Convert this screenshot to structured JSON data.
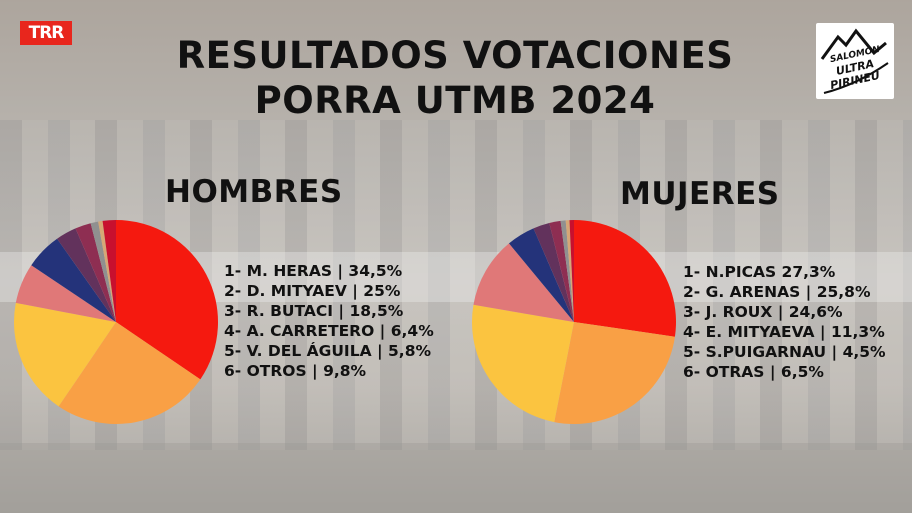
{
  "logo_left": "TRR",
  "title": {
    "line1": "RESULTADOS VOTACIONES",
    "line2": "PORRA UTMB 2024"
  },
  "logo_right": {
    "line1": "SALOMON",
    "line2": "ULTRA",
    "line3": "PIRINEU"
  },
  "colors": {
    "red": "#f5190f",
    "orange": "#f9a045",
    "yellow": "#fbc440",
    "pink": "#e07878",
    "navy": "#24337a",
    "purple": "#62325c",
    "magenta": "#8e2e52",
    "gray": "#909090",
    "tan": "#d6a776",
    "crimson": "#c8102e"
  },
  "chart_data": [
    {
      "type": "pie",
      "title": "HOMBRES",
      "legend_lines": [
        "1- M. HERAS | 34,5%",
        "2- D. MITYAEV | 25%",
        "3- R. BUTACI | 18,5%",
        "4- A. CARRETERO | 6,4%",
        "5- V. DEL ÁGUILA | 5,8%",
        "6- OTROS | 9,8%"
      ],
      "slices": [
        {
          "label": "M. HERAS",
          "value": 34.5,
          "color": "#f5190f"
        },
        {
          "label": "D. MITYAEV",
          "value": 25.0,
          "color": "#f9a045"
        },
        {
          "label": "R. BUTACI",
          "value": 18.5,
          "color": "#fbc440"
        },
        {
          "label": "",
          "value": 6.4,
          "color": "#e07878"
        },
        {
          "label": "",
          "value": 5.8,
          "color": "#24337a"
        },
        {
          "label": "",
          "value": 3.3,
          "color": "#62325c"
        },
        {
          "label": "",
          "value": 2.5,
          "color": "#8e2e52"
        },
        {
          "label": "",
          "value": 1.2,
          "color": "#909090"
        },
        {
          "label": "",
          "value": 0.7,
          "color": "#d6a776"
        },
        {
          "label": "",
          "value": 2.1,
          "color": "#c8102e"
        }
      ]
    },
    {
      "type": "pie",
      "title": "MUJERES",
      "legend_lines": [
        "1- N.PICAS 27,3%",
        "2- G. ARENAS | 25,8%",
        "3- J. ROUX | 24,6%",
        "4- E. MITYAEVA | 11,3%",
        "5- S.PUIGARNAU | 4,5%",
        "6- OTRAS | 6,5%"
      ],
      "slices": [
        {
          "label": "N.PICAS",
          "value": 27.3,
          "color": "#f5190f"
        },
        {
          "label": "G. ARENAS",
          "value": 25.8,
          "color": "#f9a045"
        },
        {
          "label": "J. ROUX",
          "value": 24.6,
          "color": "#fbc440"
        },
        {
          "label": "",
          "value": 11.3,
          "color": "#e07878"
        },
        {
          "label": "",
          "value": 4.5,
          "color": "#24337a"
        },
        {
          "label": "",
          "value": 2.6,
          "color": "#62325c"
        },
        {
          "label": "",
          "value": 1.8,
          "color": "#8e2e52"
        },
        {
          "label": "",
          "value": 0.8,
          "color": "#909090"
        },
        {
          "label": "",
          "value": 0.6,
          "color": "#d6a776"
        },
        {
          "label": "",
          "value": 0.7,
          "color": "#c8102e"
        }
      ]
    }
  ]
}
